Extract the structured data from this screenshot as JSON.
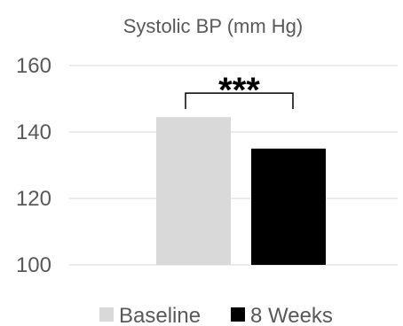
{
  "chart_data": {
    "type": "bar",
    "title": "Systolic BP (mm Hg)",
    "xlabel": "",
    "ylabel": "",
    "ylim": [
      100,
      160
    ],
    "yticks": [
      100,
      120,
      140,
      160
    ],
    "grid": true,
    "legend_position": "bottom",
    "series": [
      {
        "name": "Baseline",
        "values": [
          144.5
        ],
        "color": "#d9d9d9"
      },
      {
        "name": "8 Weeks",
        "values": [
          135
        ],
        "color": "#000000"
      }
    ],
    "annotation": {
      "text": "***",
      "between": [
        "Baseline",
        "8 Weeks"
      ]
    }
  },
  "colors": {
    "grid": "#d9d9d9",
    "text": "#595959",
    "bracket": "#000000"
  }
}
